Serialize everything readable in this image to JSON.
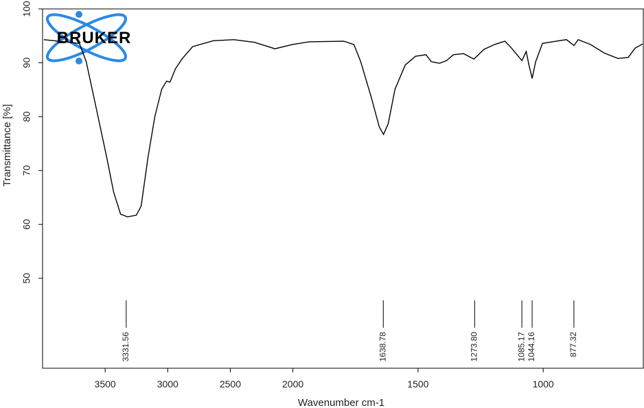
{
  "chart_data": {
    "type": "line",
    "logo": "BRUKER",
    "x_label": "Wavenumber cm-1",
    "y_label": "Transmittance [%]",
    "color": "#000000",
    "x_compression": {
      "above": 2000,
      "factor": 0.5
    },
    "xlim": [
      4000,
      600
    ],
    "xticks": [
      3500,
      3000,
      2500,
      2000,
      1500,
      1000
    ],
    "ylim": [
      33.3,
      100
    ],
    "yticks": [
      50,
      60,
      70,
      80,
      90,
      100
    ],
    "x": [
      3990,
      3706,
      3651,
      3569,
      3487,
      3432,
      3377,
      3322,
      3251,
      3212,
      3158,
      3103,
      3048,
      3009,
      2982,
      2938,
      2883,
      2801,
      2636,
      2472,
      2307,
      2143,
      2005,
      1934,
      1797,
      1756,
      1729,
      1688,
      1655,
      1638,
      1619,
      1592,
      1551,
      1510,
      1468,
      1447,
      1414,
      1386,
      1359,
      1318,
      1277,
      1236,
      1194,
      1153,
      1126,
      1085,
      1068,
      1057,
      1044,
      1030,
      1003,
      948,
      907,
      877,
      860,
      811,
      756,
      701,
      660,
      633,
      603
    ],
    "values": [
      94.3,
      93.6,
      90.2,
      81.3,
      72.4,
      66.0,
      61.9,
      61.4,
      61.7,
      63.4,
      72.4,
      80.0,
      85.1,
      86.6,
      86.4,
      88.9,
      90.8,
      93.0,
      94.1,
      94.3,
      93.8,
      92.6,
      93.4,
      93.9,
      94.0,
      93.4,
      90.2,
      83.8,
      78.1,
      76.7,
      78.7,
      85.1,
      89.6,
      91.2,
      91.5,
      90.2,
      89.9,
      90.4,
      91.5,
      91.7,
      90.7,
      92.5,
      93.4,
      94.0,
      92.7,
      90.4,
      92.1,
      89.6,
      87.1,
      90.2,
      93.6,
      94.0,
      94.3,
      93.2,
      94.3,
      93.4,
      91.8,
      90.8,
      91.0,
      92.7,
      93.5
    ],
    "peaks": [
      {
        "value": 3331.56,
        "label": "3331.56"
      },
      {
        "value": 1638.78,
        "label": "1638.78"
      },
      {
        "value": 1273.8,
        "label": "1273.80"
      },
      {
        "value": 1085.17,
        "label": "1085.17"
      },
      {
        "value": 1044.16,
        "label": "1044.16"
      },
      {
        "value": 877.32,
        "label": "877.32"
      }
    ]
  }
}
